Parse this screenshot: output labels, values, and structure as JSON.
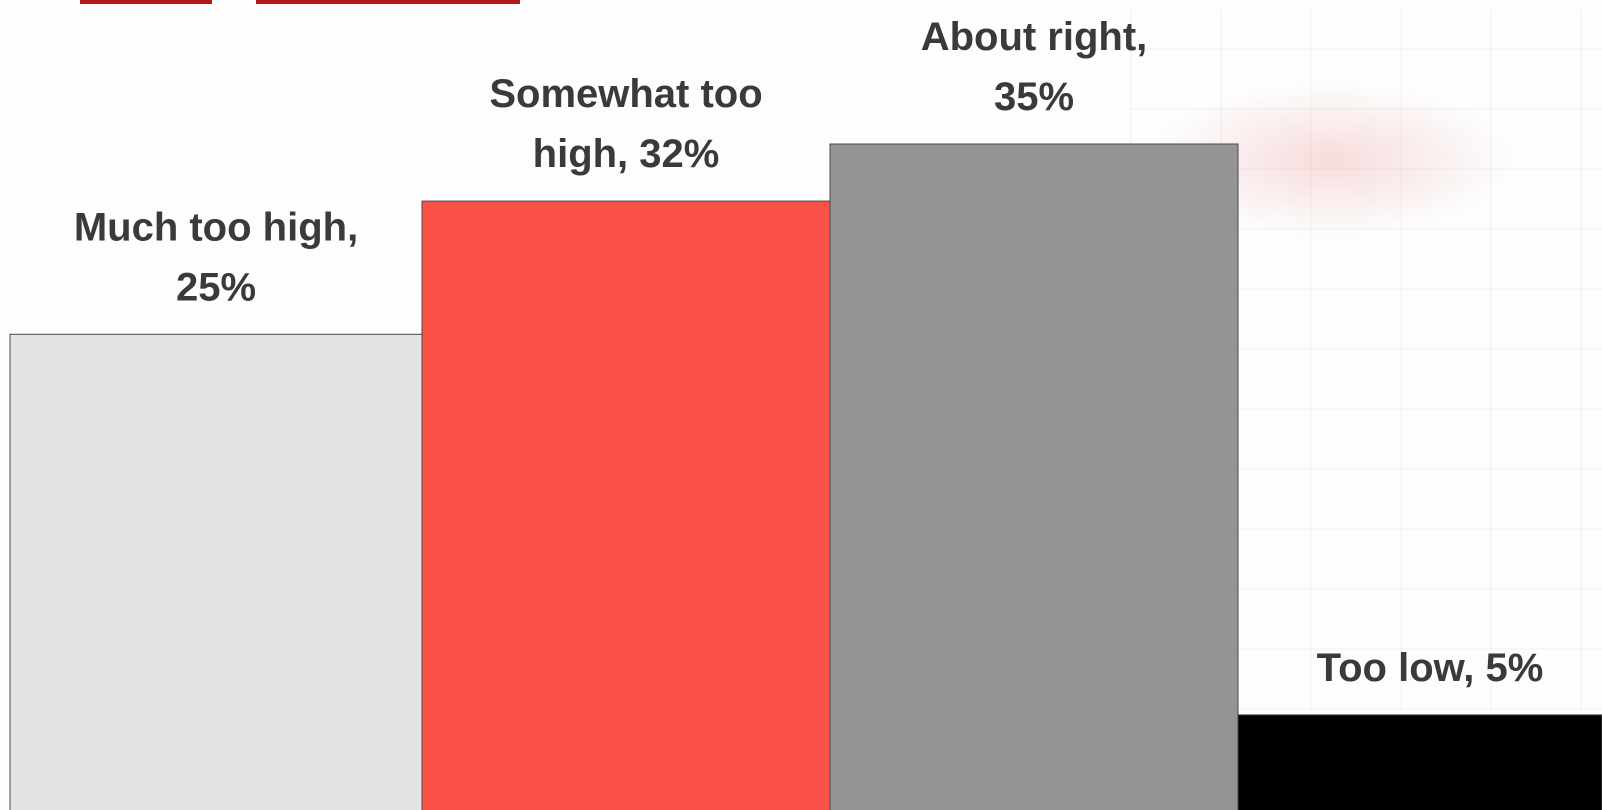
{
  "chart_data": {
    "type": "bar",
    "categories": [
      "Much too high",
      "Somewhat too high",
      "About right",
      "Too low"
    ],
    "values": [
      25,
      32,
      35,
      5
    ],
    "data_labels": [
      [
        "Much too high,",
        "25%"
      ],
      [
        "Somewhat too",
        "high, 32%"
      ],
      [
        "About right,",
        "35%"
      ],
      [
        "Too low, 5%"
      ]
    ],
    "colors": [
      "#e3e3e3",
      "#fa5149",
      "#949494",
      "#000000"
    ],
    "title": "",
    "xlabel": "",
    "ylabel": "",
    "ylim": [
      0,
      38
    ],
    "grid": false,
    "legend": "none"
  }
}
